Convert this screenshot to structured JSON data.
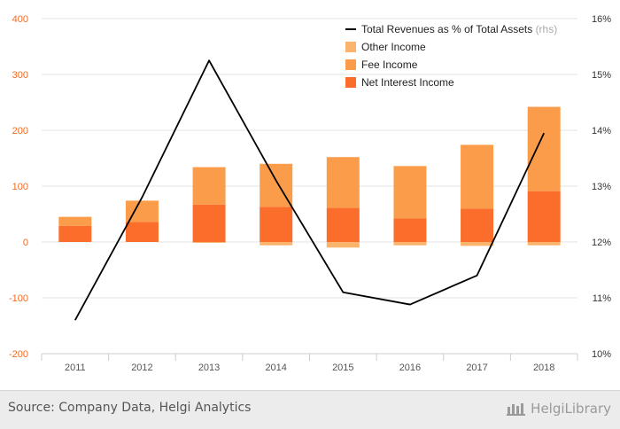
{
  "chart_data": {
    "type": "bar",
    "stacked": true,
    "categories": [
      "2011",
      "2012",
      "2013",
      "2014",
      "2015",
      "2016",
      "2017",
      "2018"
    ],
    "series": [
      {
        "name": "Net Interest Income",
        "color": "#fa6d2a",
        "values": [
          29,
          36,
          67,
          63,
          61,
          42,
          60,
          91
        ]
      },
      {
        "name": "Fee Income",
        "color": "#fb9c4b",
        "values": [
          16,
          38,
          67,
          77,
          91,
          94,
          114,
          151
        ]
      },
      {
        "name": "Other Income",
        "color": "#fbb46c",
        "values": [
          0,
          0,
          -1,
          -6,
          -10,
          -6,
          -7,
          -6
        ]
      }
    ],
    "line_series": {
      "name": "Total Revenues as % of Total Assets",
      "legend_suffix": "(rhs)",
      "axis": "right",
      "color": "#000000",
      "values": [
        10.6,
        12.8,
        15.25,
        13.1,
        11.1,
        10.88,
        11.4,
        13.95
      ]
    },
    "y_left": {
      "min": -200,
      "max": 400,
      "ticks": [
        "-200",
        "-100",
        "0",
        "100",
        "200",
        "300",
        "400"
      ],
      "tick_values": [
        -200,
        -100,
        0,
        100,
        200,
        300,
        400
      ],
      "color": "#f26a20"
    },
    "y_right": {
      "min": 10,
      "max": 16,
      "ticks": [
        "10%",
        "11%",
        "12%",
        "13%",
        "14%",
        "15%",
        "16%"
      ],
      "tick_values": [
        10,
        11,
        12,
        13,
        14,
        15,
        16
      ]
    },
    "legend_placement": "top-right",
    "legend_order": [
      "line",
      "Other Income",
      "Fee Income",
      "Net Interest Income"
    ],
    "grid": true
  },
  "footer": {
    "source": "Source: Company Data, Helgi Analytics",
    "brand": "HelgiLibrary"
  }
}
